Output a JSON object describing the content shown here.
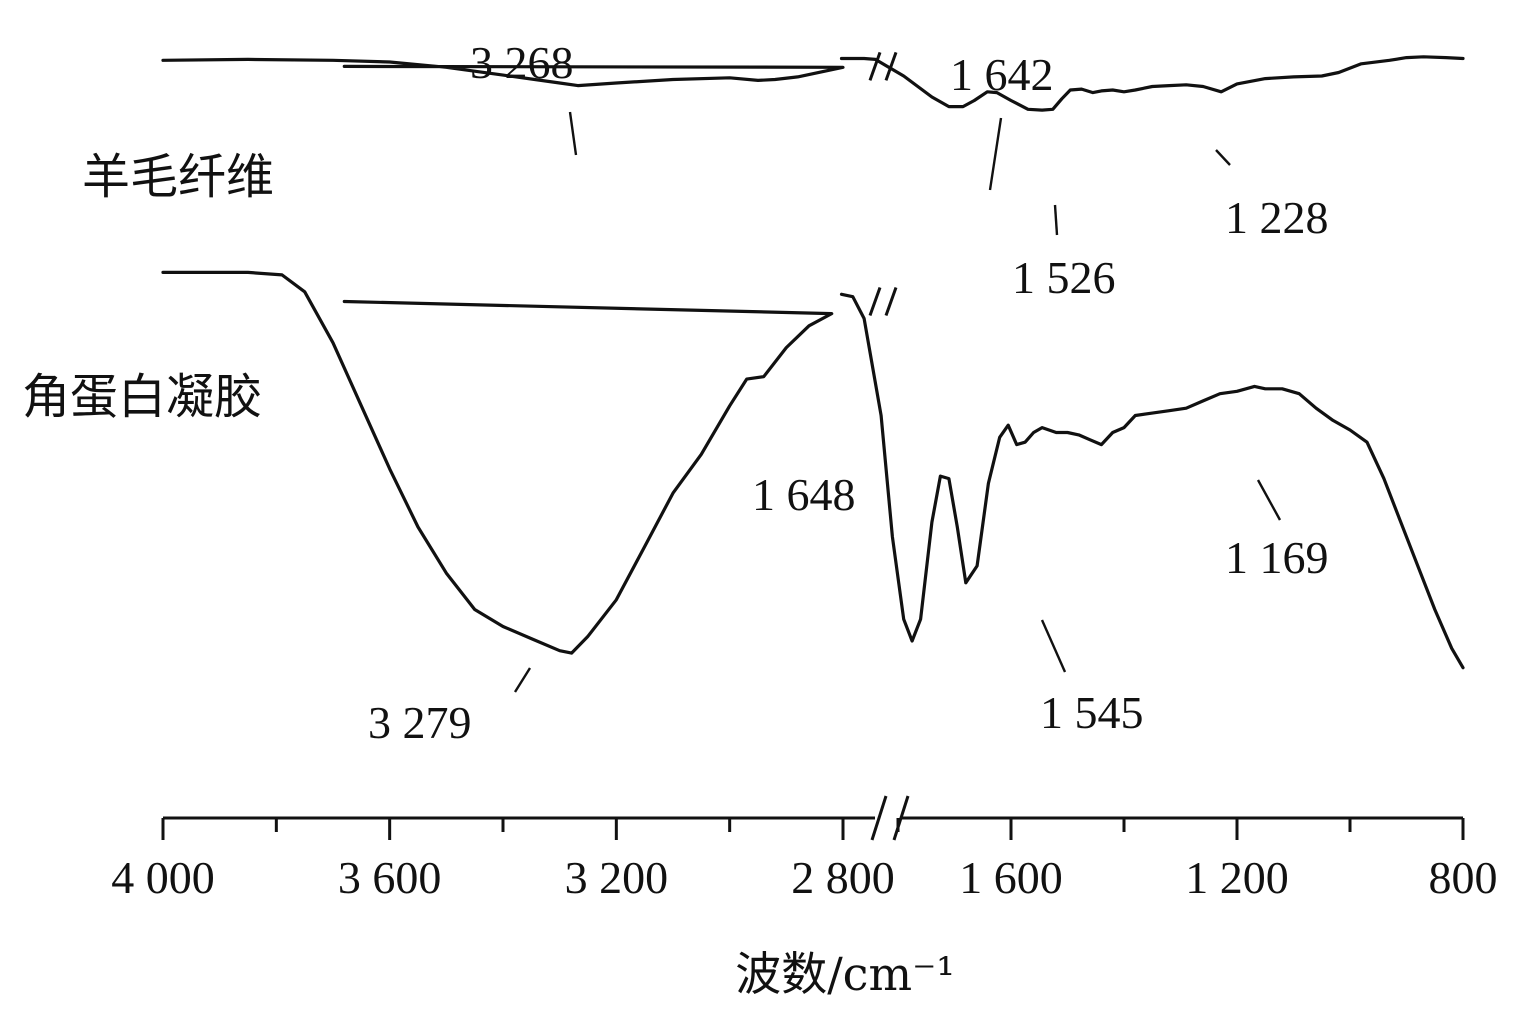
{
  "chart_data": {
    "type": "line",
    "xlabel": "波数/cm⁻¹",
    "ylabel": "",
    "x_axis": {
      "reversed": true,
      "broken": true,
      "segments": [
        [
          4000,
          2800
        ],
        [
          1900,
          800
        ]
      ],
      "tick_labels": [
        "4 000",
        "3 600",
        "3 200",
        "2 800",
        "1 600",
        "1 200",
        "800"
      ],
      "tick_values": [
        4000,
        3600,
        3200,
        2800,
        1600,
        1200,
        800
      ],
      "minor_tick_values": [
        3800,
        3400,
        3000,
        1800,
        1400,
        1000
      ]
    },
    "y_axis": {
      "shown": false
    },
    "grid": false,
    "series": [
      {
        "name": "羊毛纤维",
        "offset_level": "top",
        "points": [
          [
            4000,
            0.97
          ],
          [
            3850,
            0.975
          ],
          [
            3700,
            0.97
          ],
          [
            3600,
            0.96
          ],
          [
            3500,
            0.93
          ],
          [
            3400,
            0.885
          ],
          [
            3300,
            0.84
          ],
          [
            3268,
            0.825
          ],
          [
            3200,
            0.84
          ],
          [
            3100,
            0.86
          ],
          [
            3000,
            0.87
          ],
          [
            2950,
            0.855
          ],
          [
            2920,
            0.86
          ],
          [
            2880,
            0.875
          ],
          [
            2800,
            0.93
          ],
          [
            2780,
            0.935
          ],
          [
            1900,
            0.98
          ],
          [
            1860,
            0.98
          ],
          [
            1840,
            0.975
          ],
          [
            1790,
            0.88
          ],
          [
            1740,
            0.76
          ],
          [
            1710,
            0.705
          ],
          [
            1685,
            0.705
          ],
          [
            1665,
            0.74
          ],
          [
            1642,
            0.79
          ],
          [
            1625,
            0.785
          ],
          [
            1600,
            0.74
          ],
          [
            1570,
            0.69
          ],
          [
            1545,
            0.685
          ],
          [
            1526,
            0.69
          ],
          [
            1510,
            0.75
          ],
          [
            1495,
            0.8
          ],
          [
            1475,
            0.805
          ],
          [
            1455,
            0.785
          ],
          [
            1440,
            0.795
          ],
          [
            1420,
            0.8
          ],
          [
            1400,
            0.79
          ],
          [
            1380,
            0.8
          ],
          [
            1350,
            0.82
          ],
          [
            1320,
            0.825
          ],
          [
            1290,
            0.83
          ],
          [
            1260,
            0.82
          ],
          [
            1228,
            0.79
          ],
          [
            1200,
            0.835
          ],
          [
            1150,
            0.865
          ],
          [
            1100,
            0.875
          ],
          [
            1050,
            0.88
          ],
          [
            1020,
            0.9
          ],
          [
            980,
            0.95
          ],
          [
            930,
            0.97
          ],
          [
            900,
            0.985
          ],
          [
            870,
            0.99
          ],
          [
            830,
            0.985
          ],
          [
            800,
            0.98
          ]
        ],
        "annotations": [
          "3 268",
          "1 642",
          "1 526",
          "1 228"
        ]
      },
      {
        "name": "角蛋白凝胶",
        "offset_level": "bottom",
        "points": [
          [
            4000,
            0.995
          ],
          [
            3850,
            0.995
          ],
          [
            3790,
            0.99
          ],
          [
            3750,
            0.955
          ],
          [
            3700,
            0.85
          ],
          [
            3650,
            0.72
          ],
          [
            3600,
            0.59
          ],
          [
            3550,
            0.47
          ],
          [
            3500,
            0.375
          ],
          [
            3450,
            0.3
          ],
          [
            3400,
            0.265
          ],
          [
            3350,
            0.24
          ],
          [
            3300,
            0.215
          ],
          [
            3279,
            0.21
          ],
          [
            3250,
            0.245
          ],
          [
            3200,
            0.32
          ],
          [
            3150,
            0.43
          ],
          [
            3100,
            0.54
          ],
          [
            3050,
            0.62
          ],
          [
            3000,
            0.72
          ],
          [
            2970,
            0.775
          ],
          [
            2940,
            0.78
          ],
          [
            2900,
            0.84
          ],
          [
            2860,
            0.885
          ],
          [
            2820,
            0.91
          ],
          [
            2780,
            0.935
          ],
          [
            1900,
            0.95
          ],
          [
            1880,
            0.945
          ],
          [
            1860,
            0.9
          ],
          [
            1830,
            0.7
          ],
          [
            1810,
            0.45
          ],
          [
            1790,
            0.28
          ],
          [
            1775,
            0.235
          ],
          [
            1760,
            0.28
          ],
          [
            1740,
            0.48
          ],
          [
            1725,
            0.575
          ],
          [
            1710,
            0.57
          ],
          [
            1695,
            0.47
          ],
          [
            1680,
            0.355
          ],
          [
            1660,
            0.39
          ],
          [
            1640,
            0.56
          ],
          [
            1620,
            0.655
          ],
          [
            1605,
            0.68
          ],
          [
            1590,
            0.64
          ],
          [
            1575,
            0.645
          ],
          [
            1560,
            0.665
          ],
          [
            1545,
            0.675
          ],
          [
            1520,
            0.665
          ],
          [
            1500,
            0.665
          ],
          [
            1480,
            0.66
          ],
          [
            1460,
            0.65
          ],
          [
            1440,
            0.64
          ],
          [
            1420,
            0.665
          ],
          [
            1400,
            0.675
          ],
          [
            1380,
            0.7
          ],
          [
            1350,
            0.705
          ],
          [
            1320,
            0.71
          ],
          [
            1290,
            0.715
          ],
          [
            1260,
            0.73
          ],
          [
            1230,
            0.745
          ],
          [
            1200,
            0.75
          ],
          [
            1169,
            0.76
          ],
          [
            1150,
            0.755
          ],
          [
            1120,
            0.755
          ],
          [
            1090,
            0.745
          ],
          [
            1060,
            0.715
          ],
          [
            1030,
            0.69
          ],
          [
            1000,
            0.67
          ],
          [
            970,
            0.645
          ],
          [
            940,
            0.57
          ],
          [
            910,
            0.48
          ],
          [
            880,
            0.39
          ],
          [
            850,
            0.3
          ],
          [
            820,
            0.22
          ],
          [
            800,
            0.18
          ]
        ],
        "annotations": [
          "3 279",
          "1 648",
          "1 545",
          "1 169"
        ]
      }
    ]
  }
}
